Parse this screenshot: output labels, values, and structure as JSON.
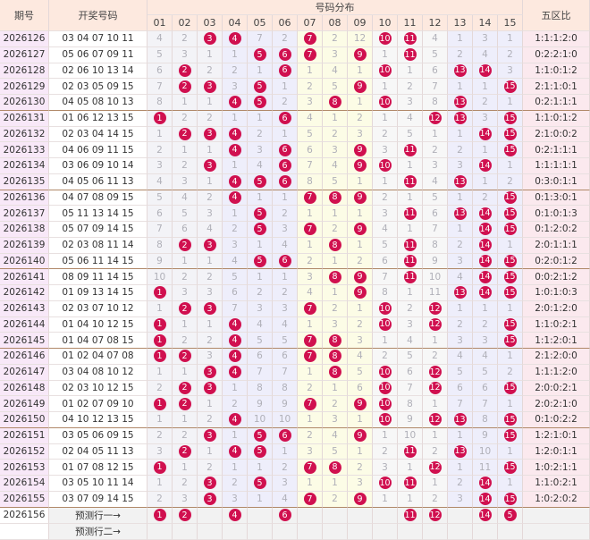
{
  "header": {
    "period": "期号",
    "draw": "开奖号码",
    "distribution": "号码分布",
    "ratio": "五区比",
    "numbers": [
      "01",
      "02",
      "03",
      "04",
      "05",
      "06",
      "07",
      "08",
      "09",
      "10",
      "11",
      "12",
      "13",
      "14",
      "15"
    ]
  },
  "rows": [
    {
      "period": "2026126",
      "draw": "03 04 07 10 11",
      "cells": [
        4,
        2,
        3,
        4,
        7,
        2,
        7,
        2,
        12,
        10,
        11,
        4,
        1,
        3,
        1
      ],
      "ratio": "1:1:1:2:0"
    },
    {
      "period": "2026127",
      "draw": "05 06 07 09 11",
      "cells": [
        5,
        3,
        1,
        1,
        5,
        6,
        7,
        3,
        9,
        1,
        11,
        5,
        2,
        4,
        2
      ],
      "ratio": "0:2:2:1:0"
    },
    {
      "period": "2026128",
      "draw": "02 06 10 13 14",
      "cells": [
        6,
        2,
        2,
        2,
        1,
        6,
        1,
        4,
        1,
        10,
        1,
        6,
        13,
        14,
        3
      ],
      "ratio": "1:1:0:1:2"
    },
    {
      "period": "2026129",
      "draw": "02 03 05 09 15",
      "cells": [
        7,
        2,
        3,
        3,
        5,
        1,
        2,
        5,
        9,
        1,
        2,
        7,
        1,
        1,
        15
      ],
      "ratio": "2:1:1:0:1"
    },
    {
      "period": "2026130",
      "draw": "04 05 08 10 13",
      "cells": [
        8,
        1,
        1,
        4,
        5,
        2,
        3,
        8,
        1,
        10,
        3,
        8,
        13,
        2,
        1
      ],
      "ratio": "0:2:1:1:1"
    },
    {
      "period": "2026131",
      "draw": "01 06 12 13 15",
      "cells": [
        1,
        2,
        2,
        1,
        1,
        6,
        4,
        1,
        2,
        1,
        4,
        12,
        13,
        3,
        15
      ],
      "ratio": "1:1:0:1:2"
    },
    {
      "period": "2026132",
      "draw": "02 03 04 14 15",
      "cells": [
        1,
        2,
        3,
        4,
        2,
        1,
        5,
        2,
        3,
        2,
        5,
        1,
        1,
        14,
        15
      ],
      "ratio": "2:1:0:0:2"
    },
    {
      "period": "2026133",
      "draw": "04 06 09 11 15",
      "cells": [
        2,
        1,
        1,
        4,
        3,
        6,
        6,
        3,
        9,
        3,
        11,
        2,
        2,
        1,
        15
      ],
      "ratio": "0:2:1:1:1"
    },
    {
      "period": "2026134",
      "draw": "03 06 09 10 14",
      "cells": [
        3,
        2,
        3,
        1,
        4,
        6,
        7,
        4,
        9,
        10,
        1,
        3,
        3,
        14,
        1
      ],
      "ratio": "1:1:1:1:1"
    },
    {
      "period": "2026135",
      "draw": "04 05 06 11 13",
      "cells": [
        4,
        3,
        1,
        4,
        5,
        6,
        8,
        5,
        1,
        1,
        11,
        4,
        13,
        1,
        2
      ],
      "ratio": "0:3:0:1:1"
    },
    {
      "period": "2026136",
      "draw": "04 07 08 09 15",
      "cells": [
        5,
        4,
        2,
        4,
        1,
        1,
        7,
        8,
        9,
        2,
        1,
        5,
        1,
        2,
        15
      ],
      "ratio": "0:1:3:0:1"
    },
    {
      "period": "2026137",
      "draw": "05 11 13 14 15",
      "cells": [
        6,
        5,
        3,
        1,
        5,
        2,
        1,
        1,
        1,
        3,
        11,
        6,
        13,
        14,
        15
      ],
      "ratio": "0:1:0:1:3"
    },
    {
      "period": "2026138",
      "draw": "05 07 09 14 15",
      "cells": [
        7,
        6,
        4,
        2,
        5,
        3,
        7,
        2,
        9,
        4,
        1,
        7,
        1,
        14,
        15
      ],
      "ratio": "0:1:2:0:2"
    },
    {
      "period": "2026139",
      "draw": "02 03 08 11 14",
      "cells": [
        8,
        2,
        3,
        3,
        1,
        4,
        1,
        8,
        1,
        5,
        11,
        8,
        2,
        14,
        1
      ],
      "ratio": "2:0:1:1:1"
    },
    {
      "period": "2026140",
      "draw": "05 06 11 14 15",
      "cells": [
        9,
        1,
        1,
        4,
        5,
        6,
        2,
        1,
        2,
        6,
        11,
        9,
        3,
        14,
        15
      ],
      "ratio": "0:2:0:1:2"
    },
    {
      "period": "2026141",
      "draw": "08 09 11 14 15",
      "cells": [
        10,
        2,
        2,
        5,
        1,
        1,
        3,
        8,
        9,
        7,
        11,
        10,
        4,
        14,
        15
      ],
      "ratio": "0:0:2:1:2"
    },
    {
      "period": "2026142",
      "draw": "01 09 13 14 15",
      "cells": [
        1,
        3,
        3,
        6,
        2,
        2,
        4,
        1,
        9,
        8,
        1,
        11,
        13,
        14,
        15
      ],
      "ratio": "1:0:1:0:3"
    },
    {
      "period": "2026143",
      "draw": "02 03 07 10 12",
      "cells": [
        1,
        2,
        3,
        7,
        3,
        3,
        7,
        2,
        1,
        10,
        2,
        12,
        1,
        1,
        1
      ],
      "ratio": "2:0:1:2:0"
    },
    {
      "period": "2026144",
      "draw": "01 04 10 12 15",
      "cells": [
        1,
        1,
        1,
        4,
        4,
        4,
        1,
        3,
        2,
        10,
        3,
        12,
        2,
        2,
        15
      ],
      "ratio": "1:1:0:2:1"
    },
    {
      "period": "2026145",
      "draw": "01 04 07 08 15",
      "cells": [
        1,
        2,
        2,
        4,
        5,
        5,
        7,
        8,
        3,
        1,
        4,
        1,
        3,
        3,
        15
      ],
      "ratio": "1:1:2:0:1"
    },
    {
      "period": "2026146",
      "draw": "01 02 04 07 08",
      "cells": [
        1,
        2,
        3,
        4,
        6,
        6,
        7,
        8,
        4,
        2,
        5,
        2,
        4,
        4,
        1
      ],
      "ratio": "2:1:2:0:0"
    },
    {
      "period": "2026147",
      "draw": "03 04 08 10 12",
      "cells": [
        1,
        1,
        3,
        4,
        7,
        7,
        1,
        8,
        5,
        10,
        6,
        12,
        5,
        5,
        2
      ],
      "ratio": "1:1:1:2:0"
    },
    {
      "period": "2026148",
      "draw": "02 03 10 12 15",
      "cells": [
        2,
        2,
        3,
        1,
        8,
        8,
        2,
        1,
        6,
        10,
        7,
        12,
        6,
        6,
        15
      ],
      "ratio": "2:0:0:2:1"
    },
    {
      "period": "2026149",
      "draw": "01 02 07 09 10",
      "cells": [
        1,
        2,
        1,
        2,
        9,
        9,
        7,
        2,
        9,
        10,
        8,
        1,
        7,
        7,
        1
      ],
      "ratio": "2:0:2:1:0"
    },
    {
      "period": "2026150",
      "draw": "04 10 12 13 15",
      "cells": [
        1,
        1,
        2,
        4,
        10,
        10,
        1,
        3,
        1,
        10,
        9,
        12,
        13,
        8,
        15
      ],
      "ratio": "0:1:0:2:2"
    },
    {
      "period": "2026151",
      "draw": "03 05 06 09 15",
      "cells": [
        2,
        2,
        3,
        1,
        5,
        6,
        2,
        4,
        9,
        1,
        10,
        1,
        1,
        9,
        15
      ],
      "ratio": "1:2:1:0:1"
    },
    {
      "period": "2026152",
      "draw": "02 04 05 11 13",
      "cells": [
        3,
        2,
        1,
        4,
        5,
        1,
        3,
        5,
        1,
        2,
        11,
        2,
        13,
        10,
        1
      ],
      "ratio": "1:2:0:1:1"
    },
    {
      "period": "2026153",
      "draw": "01 07 08 12 15",
      "cells": [
        1,
        1,
        2,
        1,
        1,
        2,
        7,
        8,
        2,
        3,
        1,
        12,
        1,
        11,
        15
      ],
      "ratio": "1:0:2:1:1"
    },
    {
      "period": "2026154",
      "draw": "03 05 10 11 14",
      "cells": [
        1,
        2,
        3,
        2,
        5,
        3,
        1,
        1,
        3,
        10,
        11,
        1,
        2,
        14,
        1
      ],
      "ratio": "1:1:0:2:1"
    },
    {
      "period": "2026155",
      "draw": "03 07 09 14 15",
      "cells": [
        2,
        3,
        3,
        3,
        1,
        4,
        7,
        2,
        9,
        1,
        1,
        2,
        3,
        14,
        15
      ],
      "ratio": "1:0:2:0:2"
    }
  ],
  "predictions": [
    {
      "period": "2026156",
      "label": "预测行一→",
      "cells": [
        1,
        2,
        null,
        4,
        null,
        6,
        null,
        null,
        null,
        null,
        11,
        12,
        null,
        14,
        5
      ]
    },
    {
      "label": "预测行二→"
    }
  ]
}
